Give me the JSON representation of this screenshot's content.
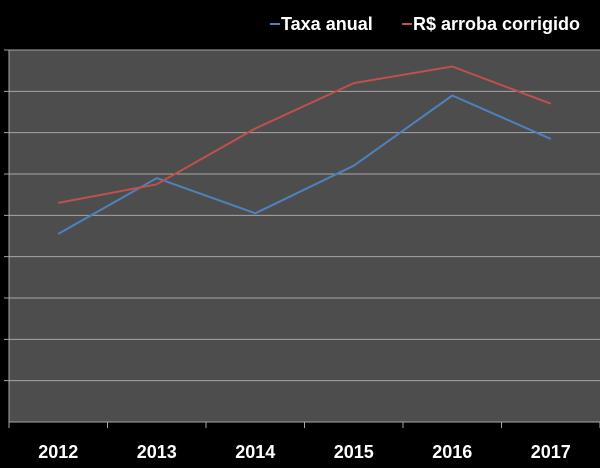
{
  "chart_data": {
    "type": "line",
    "title": "",
    "xlabel": "",
    "ylabel": "",
    "categories": [
      "2012",
      "2013",
      "2014",
      "2015",
      "2016",
      "2017"
    ],
    "ylim": [
      0,
      9
    ],
    "y_ticks_labeled": false,
    "grid": true,
    "legend_position": "top-right",
    "colors": {
      "page_background": "#000000",
      "plot_background": "#4d4d4d",
      "gridline": "#a6a6a6",
      "text": "#ffffff"
    },
    "series": [
      {
        "name": "Taxa anual",
        "color": "#4f81bd",
        "values": [
          4.55,
          5.9,
          5.05,
          6.2,
          7.9,
          6.85
        ]
      },
      {
        "name": "R$ arroba corrigido",
        "color": "#c0504d",
        "values": [
          5.3,
          5.75,
          7.1,
          8.2,
          8.6,
          7.7
        ]
      }
    ]
  }
}
